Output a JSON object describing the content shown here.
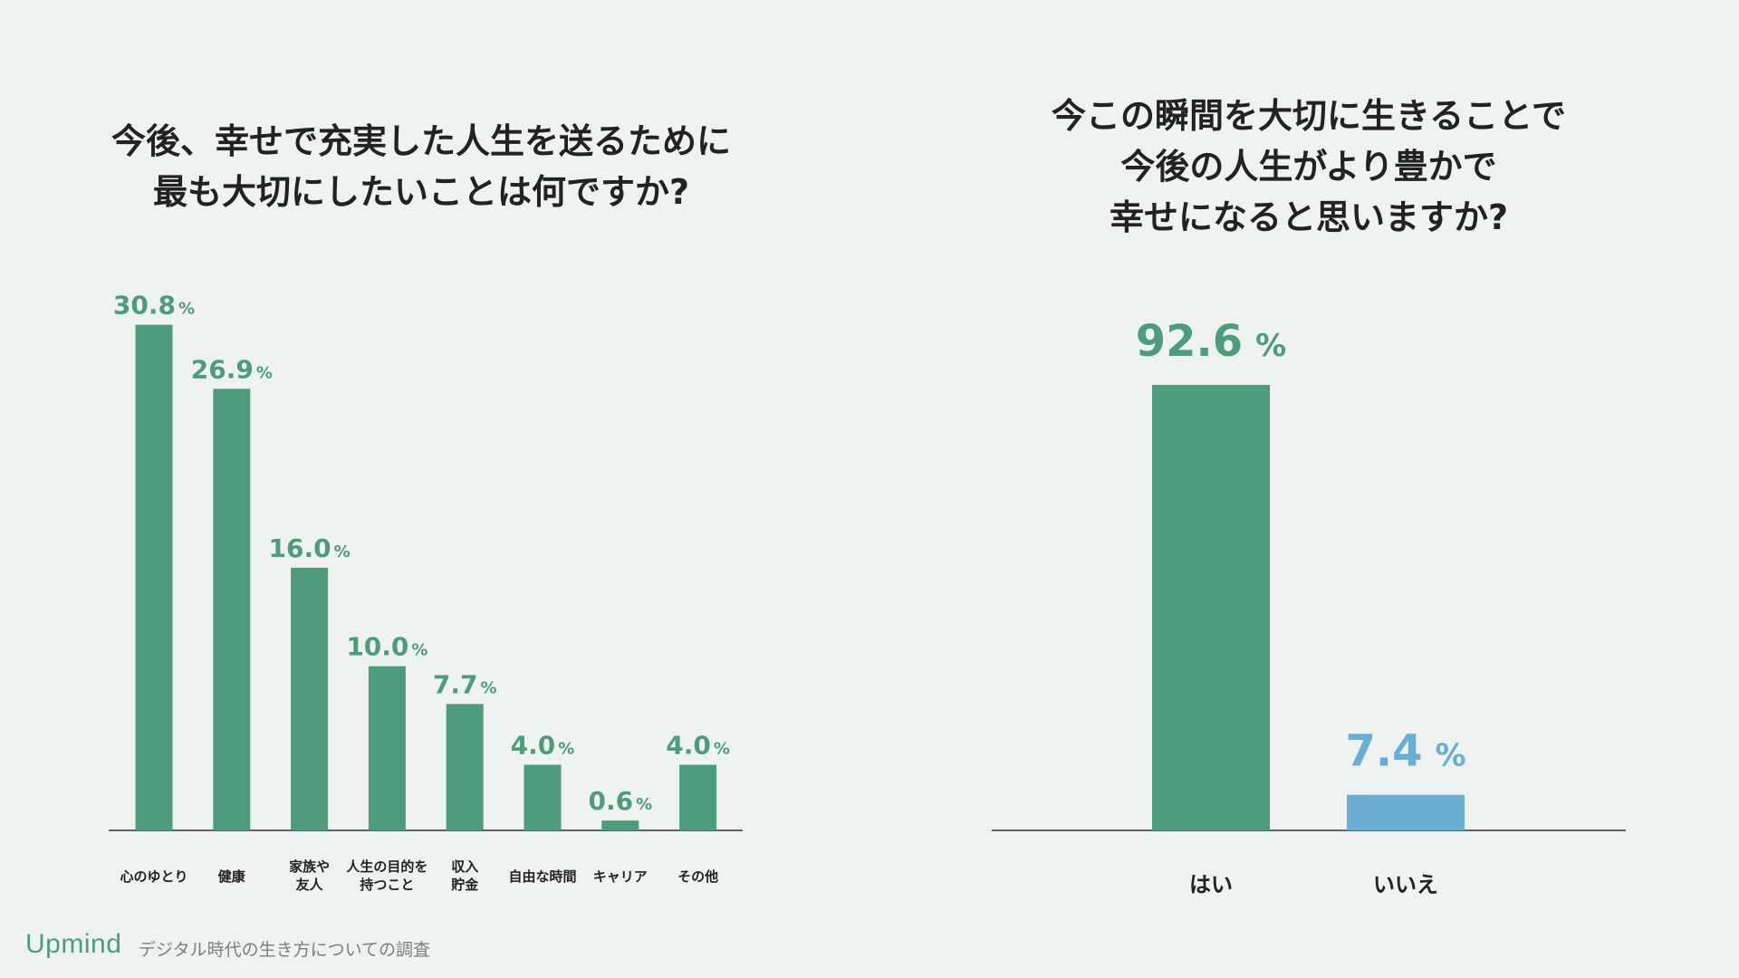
{
  "colors": {
    "background": "#eef3f2",
    "green": "#4e9c7b",
    "blue": "#6aaed4",
    "axis": "#333333",
    "text": "#222222",
    "caption": "#7d7d7d"
  },
  "chart_data": [
    {
      "type": "bar",
      "title_lines": [
        "今後、幸せで充実した人生を送るために",
        "最も大切にしたいことは何ですか?"
      ],
      "categories": [
        [
          "心のゆとり"
        ],
        [
          "健康"
        ],
        [
          "家族や",
          "友人"
        ],
        [
          "人生の目的を",
          "持つこと"
        ],
        [
          "収入",
          "貯金"
        ],
        [
          "自由な時間"
        ],
        [
          "キャリア"
        ],
        [
          "その他"
        ]
      ],
      "values": [
        30.8,
        26.9,
        16.0,
        10.0,
        7.7,
        4.0,
        0.6,
        4.0
      ],
      "value_labels": [
        "30.8",
        "26.9",
        "16.0",
        "10.0",
        "7.7",
        "4.0",
        "0.6",
        "4.0"
      ],
      "unit": "%",
      "bar_colors": [
        "#4e9c7b",
        "#4e9c7b",
        "#4e9c7b",
        "#4e9c7b",
        "#4e9c7b",
        "#4e9c7b",
        "#4e9c7b",
        "#4e9c7b"
      ],
      "ylim": [
        0,
        31
      ],
      "xlabel": "",
      "ylabel": "",
      "grid": false
    },
    {
      "type": "bar",
      "title_lines": [
        "今この瞬間を大切に生きることで",
        "今後の人生がより豊かで",
        "幸せになると思いますか?"
      ],
      "categories": [
        [
          "はい"
        ],
        [
          "いいえ"
        ]
      ],
      "values": [
        92.6,
        7.4
      ],
      "value_labels": [
        "92.6",
        "7.4"
      ],
      "unit": "%",
      "bar_colors": [
        "#4e9c7b",
        "#6aaed4"
      ],
      "ylim": [
        0,
        92.6
      ],
      "xlabel": "",
      "ylabel": "",
      "grid": false
    }
  ],
  "footer": {
    "brand": "Upmind",
    "caption": "デジタル時代の生き方についての調査"
  }
}
